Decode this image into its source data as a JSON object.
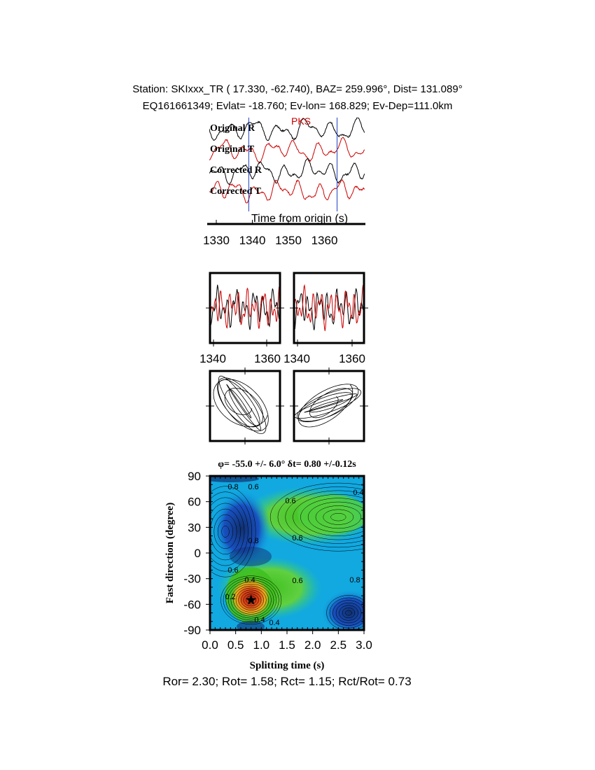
{
  "header": {
    "line1": "Station: SKIxxx_TR (  17.330,  -62.740), BAZ=  259.996°, Dist=  131.089°",
    "line2": "EQ161661349; Evlat= -18.760; Ev-lon= 168.829; Ev-Dep=111.0km"
  },
  "traces": {
    "phase_label": "PKS",
    "labels": [
      "Original R",
      "Original T",
      "Corrected R",
      "Corrected T"
    ],
    "colors": [
      "#000000",
      "#cc0000",
      "#000000",
      "#cc0000"
    ],
    "xlabel": "Time from origin (s)",
    "ticks": [
      1330,
      1340,
      1350,
      1360
    ],
    "window_marks": [
      1339,
      1363.5
    ]
  },
  "particle_motion": {
    "ticks": [
      1340,
      1360
    ],
    "tick_labels": [
      "1340",
      "1360",
      "1340",
      "1360"
    ]
  },
  "chart_data": {
    "type": "heatmap",
    "title": "φ= -55.0 +/- 6.0° δt= 0.80 +/-0.12s",
    "xlabel": "Splitting time (s)",
    "ylabel": "Fast direction (degree)",
    "xlim": [
      0.0,
      3.0
    ],
    "ylim": [
      -90,
      90
    ],
    "x_ticks": [
      "0.0",
      "0.5",
      "1.0",
      "1.5",
      "2.0",
      "2.5",
      "3.0"
    ],
    "y_ticks": [
      "90",
      "60",
      "30",
      "0",
      "-30",
      "-60",
      "-90"
    ],
    "contour_labels": [
      "0.8",
      "0.6",
      "0.6",
      "0.4",
      "0.6",
      "0.8",
      "0.6",
      "0.4",
      "0.2",
      "0.4",
      "0.6",
      "0.8",
      "0.4"
    ],
    "best_fit": {
      "dt": 0.8,
      "phi": -55.0
    }
  },
  "footer": {
    "ratios": "Ror= 2.30; Rot= 1.58; Rct= 1.15; Rct/Rot= 0.73"
  }
}
